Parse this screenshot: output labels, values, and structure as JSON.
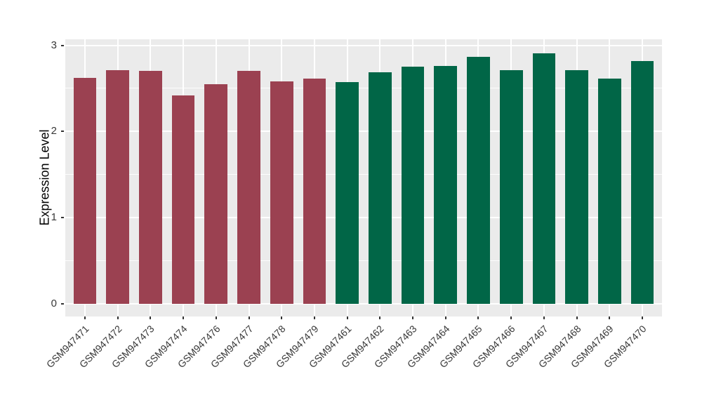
{
  "figure": {
    "background": "#FFFFFF",
    "panel_background": "#EBEBEB",
    "gridline_color": "#FFFFFF",
    "axis_text_color": "#383838",
    "tick_mark_color": "#333333"
  },
  "chart_data": {
    "type": "bar",
    "title": "",
    "xlabel": "",
    "ylabel": "Expression Level",
    "ylim": [
      -0.15,
      3.07
    ],
    "yticks": [
      0,
      1,
      2,
      3
    ],
    "yminor": [
      0.5,
      1.5,
      2.5
    ],
    "grid": "white major+minor horizontal lines and major vertical lines on grey panel",
    "legend": "none",
    "x_tick_rotation_deg": 45,
    "bar_width_fraction": 0.7,
    "group_colors": [
      "#9B4151",
      "#016647"
    ],
    "bars": [
      {
        "label": "GSM947471",
        "value": 2.62,
        "group": 0
      },
      {
        "label": "GSM947472",
        "value": 2.71,
        "group": 0
      },
      {
        "label": "GSM947473",
        "value": 2.7,
        "group": 0
      },
      {
        "label": "GSM947474",
        "value": 2.42,
        "group": 0
      },
      {
        "label": "GSM947476",
        "value": 2.55,
        "group": 0
      },
      {
        "label": "GSM947477",
        "value": 2.7,
        "group": 0
      },
      {
        "label": "GSM947478",
        "value": 2.58,
        "group": 0
      },
      {
        "label": "GSM947479",
        "value": 2.61,
        "group": 0
      },
      {
        "label": "GSM947461",
        "value": 2.57,
        "group": 1
      },
      {
        "label": "GSM947462",
        "value": 2.69,
        "group": 1
      },
      {
        "label": "GSM947463",
        "value": 2.75,
        "group": 1
      },
      {
        "label": "GSM947464",
        "value": 2.76,
        "group": 1
      },
      {
        "label": "GSM947465",
        "value": 2.87,
        "group": 1
      },
      {
        "label": "GSM947466",
        "value": 2.71,
        "group": 1
      },
      {
        "label": "GSM947467",
        "value": 2.91,
        "group": 1
      },
      {
        "label": "GSM947468",
        "value": 2.71,
        "group": 1
      },
      {
        "label": "GSM947469",
        "value": 2.61,
        "group": 1
      },
      {
        "label": "GSM947470",
        "value": 2.82,
        "group": 1
      }
    ]
  }
}
